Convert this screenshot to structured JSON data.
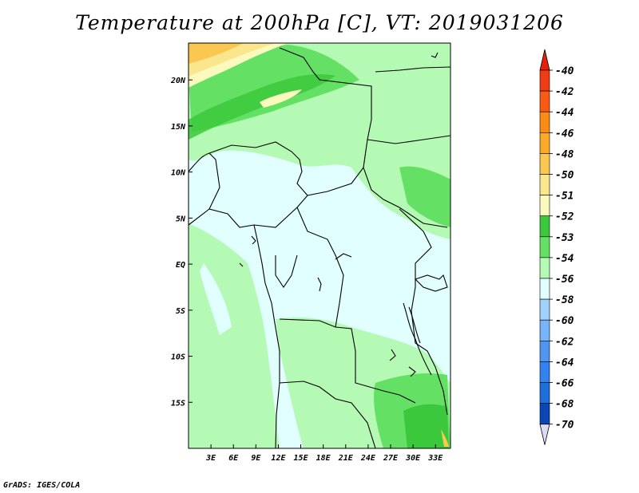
{
  "title": "Temperature at 200hPa [C], VT: 2019031206",
  "credit": "GrADS: IGES/COLA",
  "map": {
    "lon_range": [
      0,
      35
    ],
    "lat_range": [
      -20,
      24
    ],
    "lon_ticks": [
      {
        "value": 3,
        "label": "3E"
      },
      {
        "value": 6,
        "label": "6E"
      },
      {
        "value": 9,
        "label": "9E"
      },
      {
        "value": 12,
        "label": "12E"
      },
      {
        "value": 15,
        "label": "15E"
      },
      {
        "value": 18,
        "label": "18E"
      },
      {
        "value": 21,
        "label": "21E"
      },
      {
        "value": 24,
        "label": "24E"
      },
      {
        "value": 27,
        "label": "27E"
      },
      {
        "value": 30,
        "label": "30E"
      },
      {
        "value": 33,
        "label": "33E"
      }
    ],
    "lat_ticks": [
      {
        "value": 20,
        "label": "20N"
      },
      {
        "value": 15,
        "label": "15N"
      },
      {
        "value": 10,
        "label": "10N"
      },
      {
        "value": 5,
        "label": "5N"
      },
      {
        "value": 0,
        "label": "EQ"
      },
      {
        "value": -5,
        "label": "5S"
      },
      {
        "value": -10,
        "label": "10S"
      },
      {
        "value": -15,
        "label": "15S"
      }
    ]
  },
  "colorbar": {
    "levels": [
      {
        "label": "-40",
        "color": "#f03c14"
      },
      {
        "label": "-42",
        "color": "#fa5a14"
      },
      {
        "label": "-44",
        "color": "#fa8c14"
      },
      {
        "label": "-46",
        "color": "#faaa28"
      },
      {
        "label": "-48",
        "color": "#fac850"
      },
      {
        "label": "-50",
        "color": "#fae68c"
      },
      {
        "label": "-51",
        "color": "#fafabe"
      },
      {
        "label": "-52",
        "color": "#3cc83c"
      },
      {
        "label": "-53",
        "color": "#64e164"
      },
      {
        "label": "-54",
        "color": "#b4fab4"
      },
      {
        "label": "-56",
        "color": "#e1ffff"
      },
      {
        "label": "-58",
        "color": "#a0d2fa"
      },
      {
        "label": "-60",
        "color": "#78b4fa"
      },
      {
        "label": "-62",
        "color": "#5096f0"
      },
      {
        "label": "-64",
        "color": "#3282f0"
      },
      {
        "label": "-66",
        "color": "#1e6edc"
      },
      {
        "label": "-68",
        "color": "#0a46b4"
      },
      {
        "label": "-70",
        "color": "#0a2882"
      }
    ],
    "top_color": "#e61e0a",
    "bottom_color": "#dcdcf5"
  }
}
